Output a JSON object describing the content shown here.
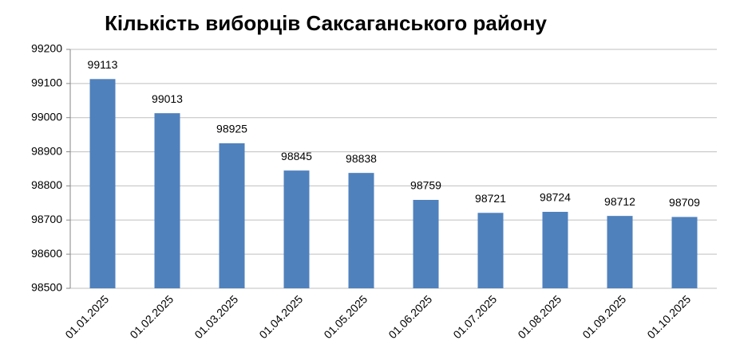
{
  "chart_data": {
    "type": "bar",
    "title": "Кількість виборців Саксаганського району",
    "categories": [
      "01.01.2025",
      "01.02.2025",
      "01.03.2025",
      "01.04.2025",
      "01.05.2025",
      "01.06.2025",
      "01.07.2025",
      "01.08.2025",
      "01.09.2025",
      "01.10.2025"
    ],
    "values": [
      99113,
      99013,
      98925,
      98845,
      98838,
      98759,
      98721,
      98724,
      98712,
      98709
    ],
    "color": "#4f81bd",
    "ylim": [
      98500,
      99200
    ],
    "yticks": [
      98500,
      98600,
      98700,
      98800,
      98900,
      99000,
      99100,
      99200
    ],
    "grid": true
  }
}
